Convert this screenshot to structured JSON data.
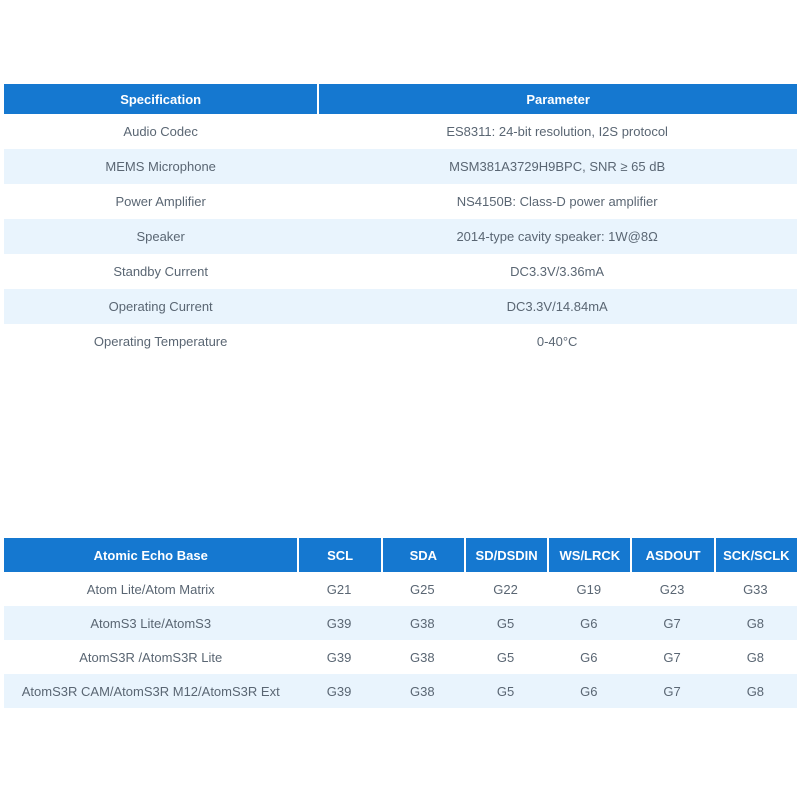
{
  "colors": {
    "header_bg": "#1578d0",
    "header_text": "#ffffff",
    "row_alt_bg": "#e9f4fd",
    "body_text": "#5a6673"
  },
  "spec_table": {
    "headers": [
      "Specification",
      "Parameter"
    ],
    "rows": [
      [
        "Audio Codec",
        "ES8311: 24-bit resolution, I2S protocol"
      ],
      [
        "MEMS Microphone",
        "MSM381A3729H9BPC, SNR ≥ 65 dB"
      ],
      [
        "Power Amplifier",
        "NS4150B: Class-D power amplifier"
      ],
      [
        "Speaker",
        "2014-type cavity speaker: 1W@8Ω"
      ],
      [
        "Standby Current",
        "DC3.3V/3.36mA"
      ],
      [
        "Operating Current",
        "DC3.3V/14.84mA"
      ],
      [
        "Operating Temperature",
        "0-40°C"
      ]
    ]
  },
  "pin_table": {
    "headers": [
      "Atomic Echo Base",
      "SCL",
      "SDA",
      "SD/DSDIN",
      "WS/LRCK",
      "ASDOUT",
      "SCK/SCLK"
    ],
    "rows": [
      [
        "Atom Lite/Atom Matrix",
        "G21",
        "G25",
        "G22",
        "G19",
        "G23",
        "G33"
      ],
      [
        "AtomS3 Lite/AtomS3",
        "G39",
        "G38",
        "G5",
        "G6",
        "G7",
        "G8"
      ],
      [
        "AtomS3R /AtomS3R Lite",
        "G39",
        "G38",
        "G5",
        "G6",
        "G7",
        "G8"
      ],
      [
        "AtomS3R CAM/AtomS3R M12/AtomS3R Ext",
        "G39",
        "G38",
        "G5",
        "G6",
        "G7",
        "G8"
      ]
    ]
  }
}
